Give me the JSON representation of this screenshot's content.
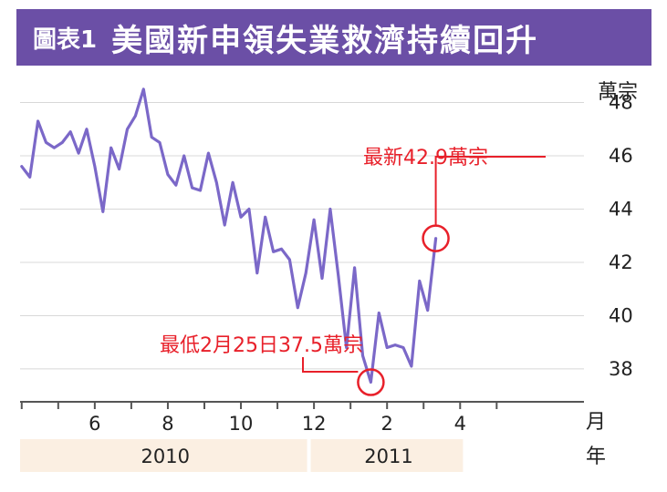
{
  "title": {
    "tag": "圖表1",
    "text": "美國新申領失業救濟持續回升"
  },
  "colors": {
    "title_bg": "#6b4fa6",
    "line": "#7b68c8",
    "annotation": "#e8202a",
    "year_band": "#fbefe2",
    "grid": "#d8d8d8"
  },
  "chart_data": {
    "type": "line",
    "title": "美國新申領失業救濟持續回升",
    "ylabel": "萬宗",
    "xlabel": "月",
    "year_label": "年",
    "ylim": [
      36.8,
      48.6
    ],
    "yticks": [
      38,
      40,
      42,
      44,
      46,
      48
    ],
    "grid": true,
    "x_range": [
      -0.2,
      71.5
    ],
    "x_month_ticks": [
      {
        "label": "6",
        "x": 9
      },
      {
        "label": "8",
        "x": 18
      },
      {
        "label": "10",
        "x": 27
      },
      {
        "label": "12",
        "x": 36
      },
      {
        "label": "2",
        "x": 45
      },
      {
        "label": "4",
        "x": 54
      }
    ],
    "x_minor_ticks": [
      0,
      4.5,
      9,
      13.5,
      18,
      22.5,
      27,
      31.5,
      36,
      40.5,
      45,
      49.5,
      54,
      58.5
    ],
    "years": [
      {
        "label": "2010",
        "from": -0.2,
        "to": 35.6
      },
      {
        "label": "2011",
        "from": 35.6,
        "to": 54.8
      }
    ],
    "series": [
      {
        "values": [
          45.6,
          45.2,
          47.3,
          46.5,
          46.3,
          46.5,
          46.9,
          46.1,
          47.0,
          45.6,
          43.9,
          46.3,
          45.5,
          47.0,
          47.5,
          48.5,
          46.7,
          46.5,
          45.3,
          44.9,
          46.0,
          44.8,
          44.7,
          46.1,
          45.0,
          43.4,
          45.0,
          43.7,
          44.0,
          41.6,
          43.7,
          42.4,
          42.5,
          42.1,
          40.3,
          41.6,
          43.6,
          41.4,
          44.0,
          41.5,
          38.8,
          41.8,
          38.5,
          37.5,
          40.1,
          38.8,
          38.9,
          38.8,
          38.1,
          41.3,
          40.2,
          42.9
        ]
      }
    ],
    "annotations": [
      {
        "text": "最新42.9萬宗",
        "x": 51,
        "value": 42.9
      },
      {
        "text": "最低2月25日37.5萬宗",
        "x": 43,
        "value": 37.5
      }
    ]
  }
}
